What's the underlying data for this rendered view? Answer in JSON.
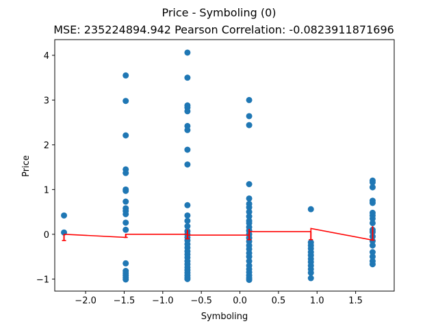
{
  "chart_data": {
    "type": "scatter",
    "title": "Price - Symboling (0)",
    "subtitle": "MSE: 235224894.942 Pearson Correlation: -0.0823911871696",
    "xlabel": "Symboling",
    "ylabel": "Price",
    "xlim": [
      -2.4,
      2.0
    ],
    "ylim": [
      -1.27,
      4.35
    ],
    "x_ticks": [
      -2.0,
      -1.5,
      -1.0,
      -0.5,
      0.0,
      0.5,
      1.0,
      1.5
    ],
    "x_tick_labels": [
      "−2.0",
      "−1.5",
      "−1.0",
      "−0.5",
      "0.0",
      "0.5",
      "1.0",
      "1.5"
    ],
    "y_ticks": [
      -1,
      0,
      1,
      2,
      3,
      4
    ],
    "y_tick_labels": [
      "−1",
      "0",
      "1",
      "2",
      "3",
      "4"
    ],
    "grid": false,
    "colors": {
      "points": "#1f77b4",
      "fit_line": "#ff0000",
      "axes": "#000000"
    },
    "series": [
      {
        "type": "scatter",
        "columns": [
          {
            "x": -2.28,
            "y": [
              0.42,
              0.04
            ]
          },
          {
            "x": -1.48,
            "y": [
              3.55,
              2.98,
              2.21,
              1.45,
              1.37,
              1.0,
              0.97,
              0.73,
              0.58,
              0.52,
              0.45,
              0.26,
              0.1,
              -0.65,
              -0.82,
              -0.87,
              -0.92,
              -0.97,
              -1.01
            ]
          },
          {
            "x": -0.68,
            "y": [
              4.06,
              3.5,
              2.88,
              2.83,
              2.75,
              2.42,
              2.33,
              1.89,
              1.56,
              0.65,
              0.42,
              0.3,
              0.18,
              0.07,
              0.0,
              -0.07,
              -0.14,
              -0.22,
              -0.3,
              -0.38,
              -0.45,
              -0.52,
              -0.6,
              -0.67,
              -0.74,
              -0.8,
              -0.86,
              -0.92,
              -0.97,
              -1.0
            ]
          },
          {
            "x": 0.12,
            "y": [
              3.0,
              2.64,
              2.44,
              1.12,
              0.8,
              0.68,
              0.6,
              0.5,
              0.4,
              0.3,
              0.25,
              0.16,
              0.08,
              0.0,
              -0.08,
              -0.16,
              -0.25,
              -0.33,
              -0.42,
              -0.5,
              -0.6,
              -0.7,
              -0.78,
              -0.85,
              -0.92,
              -0.98,
              -1.02
            ]
          },
          {
            "x": 0.92,
            "y": [
              0.56,
              -0.18,
              -0.25,
              -0.32,
              -0.4,
              -0.47,
              -0.55,
              -0.62,
              -0.7,
              -0.78,
              -0.86,
              -0.98
            ]
          },
          {
            "x": 1.72,
            "y": [
              1.2,
              1.16,
              1.05,
              0.75,
              0.7,
              0.48,
              0.42,
              0.35,
              0.25,
              0.1,
              0.05,
              -0.05,
              -0.15,
              -0.25,
              -0.4,
              -0.5,
              -0.6,
              -0.67
            ]
          }
        ]
      },
      {
        "type": "line",
        "x": [
          -2.28,
          -1.48,
          -1.48,
          -0.68,
          -0.68,
          0.12,
          0.12,
          0.92,
          0.92,
          1.72,
          1.72
        ],
        "y": [
          0.0,
          -0.07,
          0.0,
          0.0,
          -0.02,
          -0.02,
          0.06,
          0.06,
          0.13,
          -0.13,
          0.18
        ]
      }
    ],
    "error_bars": [
      {
        "x": -2.28,
        "low": -0.14,
        "high": 0.0
      },
      {
        "x": -1.48,
        "low": -0.07,
        "high": 0.0
      },
      {
        "x": -0.68,
        "low": -0.1,
        "high": 0.1
      },
      {
        "x": 0.12,
        "low": -0.12,
        "high": 0.12
      },
      {
        "x": 0.92,
        "low": -0.12,
        "high": 0.06
      },
      {
        "x": 1.72,
        "low": -0.13,
        "high": 0.18
      }
    ]
  }
}
